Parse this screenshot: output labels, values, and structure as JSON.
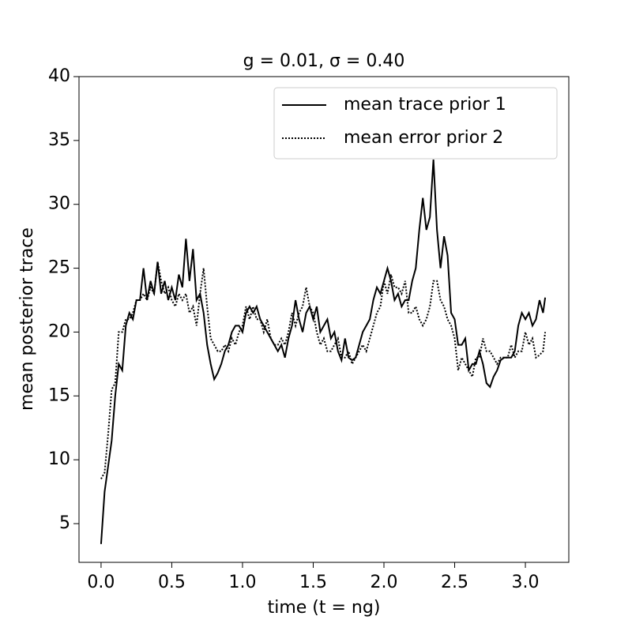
{
  "chart_data": {
    "type": "line",
    "title": "g = 0.01, σ = 0.40",
    "xlabel": "time (t = ng)",
    "ylabel": "mean posterior trace",
    "x": [
      0,
      0.025,
      0.05,
      0.075,
      0.1,
      0.125,
      0.15,
      0.175,
      0.2,
      0.225,
      0.25,
      0.275,
      0.3,
      0.325,
      0.35,
      0.375,
      0.4,
      0.425,
      0.45,
      0.475,
      0.5,
      0.525,
      0.55,
      0.575,
      0.6,
      0.625,
      0.65,
      0.675,
      0.7,
      0.725,
      0.75,
      0.775,
      0.8,
      0.825,
      0.85,
      0.875,
      0.9,
      0.925,
      0.95,
      0.975,
      1.0,
      1.025,
      1.05,
      1.075,
      1.1,
      1.125,
      1.15,
      1.175,
      1.2,
      1.225,
      1.25,
      1.275,
      1.3,
      1.325,
      1.35,
      1.375,
      1.4,
      1.425,
      1.45,
      1.475,
      1.5,
      1.525,
      1.55,
      1.575,
      1.6,
      1.625,
      1.65,
      1.675,
      1.7,
      1.725,
      1.75,
      1.775,
      1.8,
      1.825,
      1.85,
      1.875,
      1.9,
      1.925,
      1.95,
      1.975,
      2.0,
      2.025,
      2.05,
      2.075,
      2.1,
      2.125,
      2.15,
      2.175,
      2.2,
      2.225,
      2.25,
      2.275,
      2.3,
      2.325,
      2.35,
      2.375,
      2.4,
      2.425,
      2.45,
      2.475,
      2.5,
      2.525,
      2.55,
      2.575,
      2.6,
      2.625,
      2.65,
      2.675,
      2.7,
      2.725,
      2.75,
      2.775,
      2.8,
      2.825,
      2.85,
      2.875,
      2.9,
      2.925,
      2.95,
      2.975,
      3.0,
      3.025,
      3.05,
      3.075,
      3.1,
      3.125,
      3.14
    ],
    "series": [
      {
        "name": "mean trace prior 1",
        "color": "#000000",
        "linestyle": "solid",
        "values": [
          3.4,
          7.5,
          9.5,
          11.5,
          15,
          17.5,
          17,
          20.5,
          21.5,
          21,
          22.5,
          22.5,
          25,
          22.5,
          24,
          23,
          25.5,
          23,
          24,
          22.5,
          23.5,
          22.5,
          24.5,
          23.5,
          27.3,
          24,
          26.5,
          22.5,
          23,
          21.5,
          19,
          17.5,
          16.3,
          16.8,
          17.5,
          18.5,
          19,
          20,
          20.5,
          20.5,
          20,
          21.5,
          22,
          21.5,
          22,
          21,
          20.5,
          20,
          19.5,
          19,
          18.5,
          19,
          18,
          19.5,
          20.5,
          22.5,
          21,
          20,
          21.5,
          22,
          21,
          22,
          20,
          20.5,
          21,
          19.5,
          20,
          18.5,
          17.8,
          19.5,
          18,
          17.8,
          18,
          19,
          20,
          20.5,
          21,
          22.5,
          23.5,
          23,
          24,
          25,
          24,
          22.5,
          23,
          22,
          22.5,
          22.5,
          24,
          25,
          28,
          30.5,
          28,
          29,
          33.5,
          28,
          25,
          27.5,
          26,
          21.5,
          21,
          19,
          19,
          19.5,
          17,
          17.5,
          17.5,
          18.5,
          17.5,
          16,
          15.7,
          16.5,
          17,
          17.8,
          18,
          18,
          18,
          18.5,
          20.5,
          21.5,
          21,
          21.5,
          20.5,
          21,
          22.5,
          21.5,
          22.7
        ]
      },
      {
        "name": "mean error prior 2",
        "color": "#000000",
        "linestyle": "dotted",
        "values": [
          8.5,
          9,
          12,
          15.5,
          16,
          20,
          20,
          21,
          21,
          21.5,
          22.5,
          22.5,
          23,
          22.5,
          23.5,
          23,
          25.5,
          24,
          23,
          23.5,
          22.5,
          22,
          23,
          22.5,
          23,
          21.5,
          22,
          20.5,
          23,
          25,
          22,
          19.5,
          19,
          18.5,
          18.5,
          19,
          18.5,
          19.5,
          19,
          20,
          20.5,
          22,
          21,
          22,
          21,
          21,
          20,
          21,
          19.5,
          19,
          19,
          19.5,
          19,
          20,
          21.5,
          20.5,
          21.5,
          22,
          23.5,
          22,
          21.5,
          20,
          19,
          19.5,
          18.5,
          18.5,
          19,
          19.5,
          18,
          18,
          18.5,
          17.5,
          18,
          18.5,
          19,
          18.5,
          19.5,
          20.5,
          21.5,
          22,
          24,
          23,
          24.5,
          23.5,
          23.5,
          23,
          24,
          21.5,
          21.5,
          22,
          21,
          20.5,
          21,
          22,
          24,
          24,
          22.5,
          22,
          21,
          20.5,
          19.5,
          17,
          18,
          17.5,
          17,
          16.5,
          18,
          18,
          19.5,
          18.5,
          18.5,
          18,
          17.5,
          18,
          18,
          18,
          19,
          18,
          18.5,
          18.5,
          20,
          19,
          19.5,
          18,
          18.2,
          18.5,
          20
        ]
      }
    ],
    "xlim": [
      -0.156,
      3.307
    ],
    "ylim": [
      1.97,
      40
    ],
    "xticks": [
      {
        "value": 0,
        "label": "0.0"
      },
      0.5,
      {
        "value": 1,
        "label": "1.0"
      },
      1.5,
      {
        "value": 2,
        "label": "2.0"
      },
      2.5,
      {
        "value": 3,
        "label": "3.0"
      }
    ],
    "yticks": [
      5,
      10,
      15,
      20,
      25,
      30,
      35,
      40
    ],
    "grid": false,
    "legend": "upper right"
  }
}
